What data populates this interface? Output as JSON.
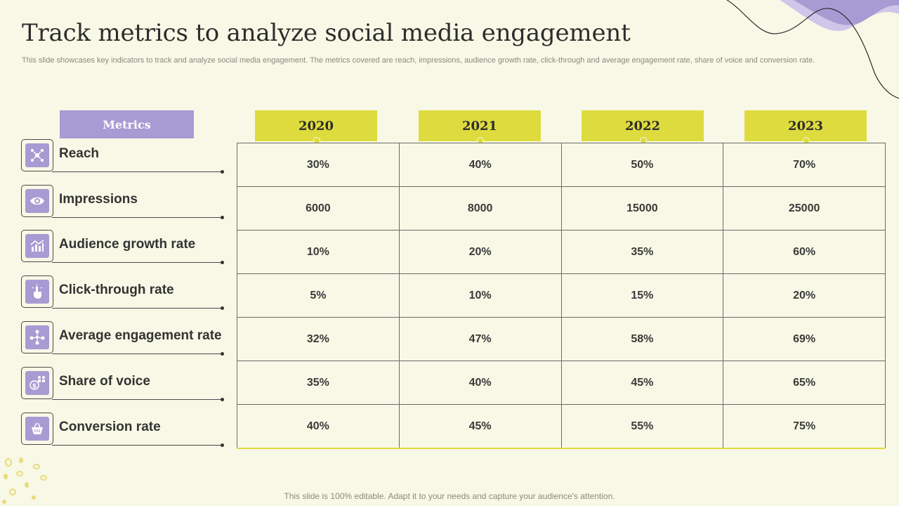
{
  "title": "Track metrics to analyze social media engagement",
  "subtitle": "This slide showcases key indicators to track and analyze social media engagement. The metrics covered are reach, impressions, audience growth rate, click-through and average engagement rate, share of voice and conversion rate.",
  "metrics_header": "Metrics",
  "years": [
    "2020",
    "2021",
    "2022",
    "2023"
  ],
  "metrics": [
    {
      "label": "Reach",
      "icon": "reach-icon",
      "values": [
        "30%",
        "40%",
        "50%",
        "70%"
      ]
    },
    {
      "label": "Impressions",
      "icon": "eye-icon",
      "values": [
        "6000",
        "8000",
        "15000",
        "25000"
      ]
    },
    {
      "label": "Audience growth rate",
      "icon": "growth-chart-icon",
      "values": [
        "10%",
        "20%",
        "35%",
        "60%"
      ]
    },
    {
      "label": "Click-through rate",
      "icon": "pointer-click-icon",
      "values": [
        "5%",
        "10%",
        "15%",
        "20%"
      ]
    },
    {
      "label": "Average engagement rate",
      "icon": "people-network-icon",
      "values": [
        "32%",
        "47%",
        "58%",
        "69%"
      ]
    },
    {
      "label": "Share of voice",
      "icon": "dollar-people-icon",
      "values": [
        "35%",
        "40%",
        "45%",
        "65%"
      ]
    },
    {
      "label": "Conversion rate",
      "icon": "basket-icon",
      "values": [
        "40%",
        "45%",
        "55%",
        "75%"
      ]
    }
  ],
  "footer": "This slide is 100% editable. Adapt it to your needs and capture your audience's attention.",
  "colors": {
    "background": "#f8f8e6",
    "accent_purple": "#a89bd3",
    "accent_yellow": "#dedb3e"
  }
}
